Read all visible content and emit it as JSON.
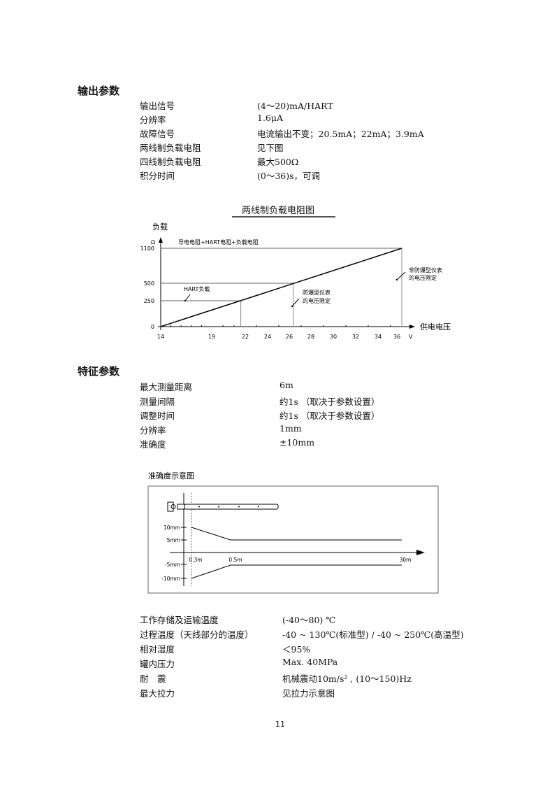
{
  "output_params": {
    "heading": "输出参数",
    "rows": [
      {
        "label": "输出信号",
        "value": "(4～20)mA/HART"
      },
      {
        "label": "分辨率",
        "value": "1.6μA"
      },
      {
        "label": "故障信号",
        "value": "电流输出不变；20.5mA；22mA；3.9mA"
      },
      {
        "label": "两线制负载电阻",
        "value": "见下图"
      },
      {
        "label": "四线制负载电阻",
        "value": "最大500Ω"
      },
      {
        "label": "积分时间",
        "value": "(0～36)s，可调"
      }
    ]
  },
  "chart_data": [
    {
      "type": "line",
      "title": "两线制负载电阻图",
      "ylabel": "负载",
      "yunit": "Ω",
      "xlabel": "供电电压",
      "xunit": "V",
      "x_ticks": [
        14,
        19,
        22,
        24,
        26,
        28,
        30,
        32,
        34,
        36
      ],
      "y_ticks": [
        0,
        250,
        500,
        1100
      ],
      "series": [
        {
          "name": "导电电阻+HART电阻+负载电阻",
          "x": [
            14,
            36
          ],
          "y": [
            0,
            1100
          ]
        }
      ],
      "annotations": {
        "hart": "HART负载",
        "ex": [
          "防爆型仪表",
          "的电压限定"
        ],
        "nonex": [
          "非防爆型仪表",
          "的电压限定"
        ]
      },
      "markers": [
        {
          "x": 21.6,
          "y": 250
        },
        {
          "x": 26.3,
          "y": 500
        },
        {
          "x": 36,
          "y": 1100
        }
      ]
    },
    {
      "type": "line",
      "title": "准确度示意图",
      "y_ticks": [
        "10mm",
        "5mm",
        "-5mm",
        "-10mm"
      ],
      "x_ticks": [
        "0.3m",
        "0.5m",
        "30m"
      ],
      "series": [
        {
          "x": [
            0.3,
            0.5,
            30
          ],
          "y": [
            10,
            5,
            5
          ]
        },
        {
          "x": [
            0.3,
            0.5,
            30
          ],
          "y": [
            -10,
            -5,
            -5
          ]
        }
      ]
    }
  ],
  "feature_params": {
    "heading": "特征参数",
    "rows": [
      {
        "label": "最大测量距离",
        "value": "6m"
      },
      {
        "label": "测量间隔",
        "value": "约1s （取决于参数设置）"
      },
      {
        "label": "调整时间",
        "value": "约1s （取决于参数设置）"
      },
      {
        "label": "分辨率",
        "value": "1mm"
      },
      {
        "label": "准确度",
        "value": "±10mm"
      }
    ]
  },
  "env_params": {
    "rows": [
      {
        "label": "工作存储及运输温度",
        "value": "(-40～80) ℃"
      },
      {
        "label": "过程温度（天线部分的温度）",
        "value": "-40 ~ 130℃(标准型) / -40 ~ 250℃(高温型)"
      },
      {
        "label": "相对湿度",
        "value": "＜95%"
      },
      {
        "label": "罐内压力",
        "value": "Max. 40MPa"
      },
      {
        "label": "耐　震",
        "value": "机械震动10m/s² , (10～150)Hz"
      },
      {
        "label": "最大拉力",
        "value": "见拉力示意图"
      }
    ]
  },
  "page_number": "11"
}
